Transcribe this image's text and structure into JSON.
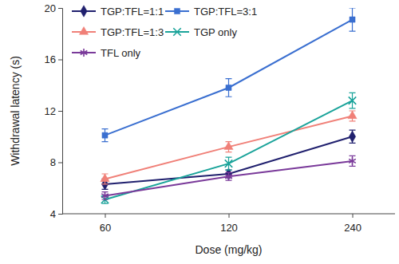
{
  "chart_data": {
    "type": "line",
    "x_label": "Dose (mg/kg)",
    "y_label": "Withdrawal latency (s)",
    "categories": [
      "60",
      "120",
      "240"
    ],
    "ylim": [
      4,
      20
    ],
    "yticks": [
      4,
      8,
      12,
      16,
      20
    ],
    "grid": false,
    "legend": "upper left",
    "series": [
      {
        "name": "TGP:TFL=1:1",
        "color": "#20206e",
        "marker": "diamond",
        "line_style": "solid",
        "values": [
          6.3,
          7.1,
          10.0
        ],
        "errors": [
          0.4,
          0.3,
          0.5
        ]
      },
      {
        "name": "TGP:TFL=3:1",
        "color": "#3a6fd0",
        "marker": "square",
        "line_style": "solid",
        "values": [
          10.1,
          13.8,
          19.1
        ],
        "errors": [
          0.5,
          0.7,
          0.9
        ]
      },
      {
        "name": "TGP:TFL=1:3",
        "color": "#f08078",
        "marker": "triangle",
        "line_style": "solid",
        "values": [
          6.7,
          9.2,
          11.6
        ],
        "errors": [
          0.4,
          0.4,
          0.4
        ]
      },
      {
        "name": "TGP only",
        "color": "#1aa39a",
        "marker": "x",
        "line_style": "solid",
        "values": [
          5.1,
          7.9,
          12.8
        ],
        "errors": [
          0.3,
          0.5,
          0.6
        ]
      },
      {
        "name": "TFL only",
        "color": "#7a3a9a",
        "marker": "asterisk",
        "line_style": "solid",
        "values": [
          5.4,
          6.9,
          8.1
        ],
        "errors": [
          0.3,
          0.3,
          0.4
        ]
      }
    ]
  }
}
